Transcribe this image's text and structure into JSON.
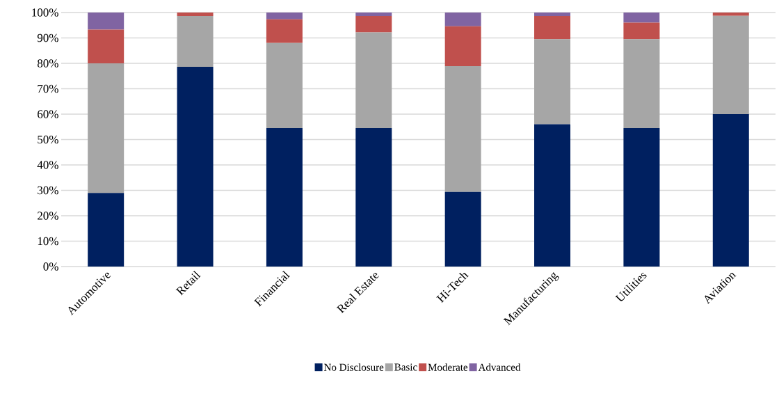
{
  "chart_data": {
    "type": "bar",
    "stacked": true,
    "categories": [
      "Automotive",
      "Retail",
      "Financial",
      "Real Estate",
      "Hi-Tech",
      "Manufacturing",
      "Utilities",
      "Aviation"
    ],
    "series": [
      {
        "name": "No Disclosure",
        "color": "#002060",
        "values": [
          29,
          78.6,
          54.5,
          54.5,
          29.4,
          56,
          54.5,
          60
        ]
      },
      {
        "name": "Basic",
        "color": "#a6a6a6",
        "values": [
          51,
          20,
          33.5,
          37.7,
          49.5,
          33.5,
          35,
          38.7
        ]
      },
      {
        "name": "Moderate",
        "color": "#c0504d",
        "values": [
          13.3,
          1.4,
          9.3,
          6.4,
          15.7,
          9.1,
          6.5,
          1.3
        ]
      },
      {
        "name": "Advanced",
        "color": "#8064a2",
        "values": [
          6.7,
          0,
          2.7,
          1.4,
          5.4,
          1.4,
          4,
          0
        ]
      }
    ],
    "ylim": [
      0,
      100
    ],
    "yticks": [
      {
        "value": 0,
        "label": "0%"
      },
      {
        "value": 10,
        "label": "10%"
      },
      {
        "value": 20,
        "label": "20%"
      },
      {
        "value": 30,
        "label": "30%"
      },
      {
        "value": 40,
        "label": "40%"
      },
      {
        "value": 50,
        "label": "50%"
      },
      {
        "value": 60,
        "label": "60%"
      },
      {
        "value": 70,
        "label": "70%"
      },
      {
        "value": 80,
        "label": "80%"
      },
      {
        "value": 90,
        "label": "90%"
      },
      {
        "value": 100,
        "label": "100%"
      }
    ],
    "grid": "y",
    "legend": "bottom"
  }
}
